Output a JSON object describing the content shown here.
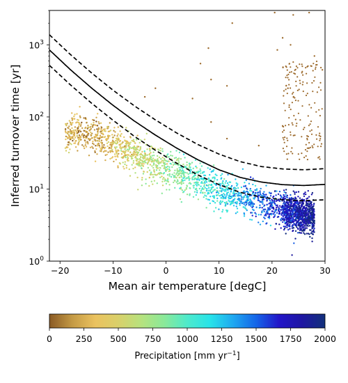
{
  "chart_data": {
    "type": "scatter",
    "xlabel": "Mean air temperature [degC]",
    "ylabel": "Inferred turnover time [yr]",
    "xlim": [
      -22,
      30
    ],
    "ylim": [
      1,
      3000
    ],
    "yscale": "log",
    "grid": false,
    "x_ticks": [
      "−20",
      "−10",
      "0",
      "10",
      "20",
      "30"
    ],
    "x_tick_values": [
      -20,
      -10,
      0,
      10,
      20,
      30
    ],
    "y_ticks": [
      {
        "value": 1,
        "base": "10",
        "exp": "0"
      },
      {
        "value": 10,
        "base": "10",
        "exp": "1"
      },
      {
        "value": 100,
        "base": "10",
        "exp": "2"
      },
      {
        "value": 1000,
        "base": "10",
        "exp": "3"
      }
    ],
    "curves": [
      {
        "style": "solid",
        "x": [
          -22,
          -18,
          -14,
          -10,
          -6,
          -2,
          2,
          6,
          10,
          14,
          18,
          22,
          26,
          30
        ],
        "y": [
          850,
          450,
          250,
          145,
          88,
          56,
          37,
          25.5,
          18.5,
          14.5,
          12.5,
          11.5,
          11.2,
          11.6
        ]
      },
      {
        "style": "dashed",
        "x": [
          -22,
          -18,
          -14,
          -10,
          -6,
          -2,
          2,
          6,
          10,
          14,
          18,
          22,
          26,
          30
        ],
        "y": [
          1380,
          730,
          405,
          235,
          143,
          91,
          60,
          41.5,
          30.5,
          24,
          20.5,
          19,
          18.5,
          19.2
        ]
      },
      {
        "style": "dashed",
        "x": [
          -22,
          -18,
          -14,
          -10,
          -6,
          -2,
          2,
          6,
          10,
          14,
          18,
          22,
          26,
          30
        ],
        "y": [
          520,
          277,
          154,
          90,
          54,
          34.5,
          22.8,
          15.7,
          11.5,
          9.0,
          7.7,
          7.1,
          6.9,
          7.1
        ]
      }
    ],
    "scatter_trend": {
      "x": [
        -20,
        -15,
        -12,
        -8,
        -4,
        0,
        4,
        8,
        12,
        16,
        20,
        24,
        28
      ],
      "y": [
        55,
        62,
        52,
        36,
        25,
        19,
        14.5,
        11,
        8.6,
        7.0,
        5.6,
        4.6,
        4.2
      ],
      "precip": [
        300,
        180,
        250,
        450,
        600,
        750,
        900,
        1050,
        1200,
        1400,
        1600,
        1750,
        1900
      ]
    },
    "scatter_outliers": [
      {
        "x": 8,
        "y": 900
      },
      {
        "x": 8.5,
        "y": 330
      },
      {
        "x": 12.5,
        "y": 2000
      },
      {
        "x": 11.5,
        "y": 270
      },
      {
        "x": 5,
        "y": 180
      },
      {
        "x": -2,
        "y": 250
      },
      {
        "x": -4,
        "y": 190
      },
      {
        "x": 6.5,
        "y": 550
      },
      {
        "x": 8.5,
        "y": 85
      },
      {
        "x": 11.5,
        "y": 50
      },
      {
        "x": 17.5,
        "y": 40
      },
      {
        "x": 20.5,
        "y": 2800
      },
      {
        "x": 24,
        "y": 2600
      },
      {
        "x": 27,
        "y": 2800
      },
      {
        "x": 22,
        "y": 1250
      },
      {
        "x": 23.5,
        "y": 1000
      },
      {
        "x": 21,
        "y": 850
      },
      {
        "x": 28,
        "y": 700
      },
      {
        "x": 29.5,
        "y": 450
      },
      {
        "x": 23,
        "y": 250
      },
      {
        "x": 22,
        "y": 75
      }
    ],
    "colorbar": {
      "label_prefix": "Precipitation [mm yr",
      "label_exp": "−1",
      "label_suffix": "]",
      "ticks": [
        "0",
        "250",
        "500",
        "750",
        "1000",
        "1250",
        "1500",
        "1750",
        "2000"
      ],
      "tick_values": [
        0,
        250,
        500,
        750,
        1000,
        1250,
        1500,
        1750,
        2000
      ],
      "range": [
        0,
        2000
      ],
      "colors": [
        "#8a5a24",
        "#c49a45",
        "#ebc25f",
        "#d9d06a",
        "#b6e27e",
        "#8ae999",
        "#4eeacb",
        "#27e3e9",
        "#1fa8f0",
        "#1565e8",
        "#2215c8",
        "#1e16a2",
        "#12307a"
      ]
    },
    "colors": {
      "tropical_sparse": "#9c6a2c",
      "curve": "#000000"
    }
  }
}
